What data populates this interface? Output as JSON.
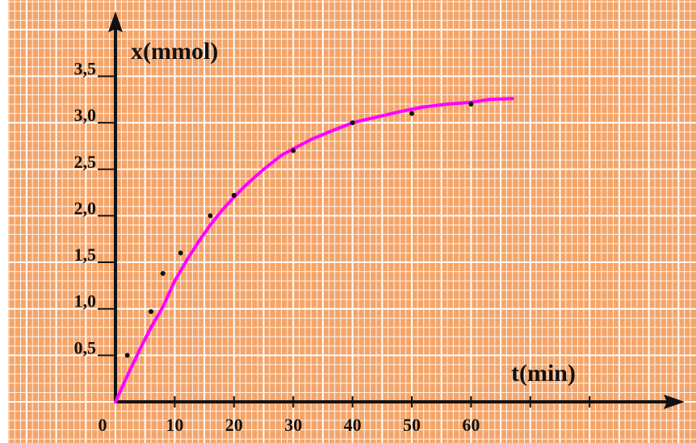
{
  "chart_data": {
    "type": "line",
    "xlabel": "t(min)",
    "ylabel": "x(mmol)",
    "xlim": [
      0,
      95
    ],
    "ylim": [
      0,
      4.2
    ],
    "grid": true,
    "x_ticks": [
      {
        "value": 0,
        "label": "0"
      },
      {
        "value": 10,
        "label": "10"
      },
      {
        "value": 20,
        "label": "20"
      },
      {
        "value": 30,
        "label": "30"
      },
      {
        "value": 40,
        "label": "40"
      },
      {
        "value": 50,
        "label": "50"
      },
      {
        "value": 60,
        "label": "60"
      }
    ],
    "y_ticks": [
      {
        "value": 0.5,
        "label": "0,5"
      },
      {
        "value": 1.0,
        "label": "1,0"
      },
      {
        "value": 1.5,
        "label": "1,5"
      },
      {
        "value": 2.0,
        "label": "2,0"
      },
      {
        "value": 2.5,
        "label": "2,5"
      },
      {
        "value": 3.0,
        "label": "3,0"
      },
      {
        "value": 3.5,
        "label": "3,5"
      }
    ],
    "series": [
      {
        "color": "#ff00ff",
        "x": [
          0,
          2,
          4,
          6,
          8,
          10,
          12,
          14,
          16,
          18,
          20,
          22,
          25,
          28,
          30,
          33,
          36,
          40,
          44,
          48,
          52,
          56,
          60,
          63,
          67
        ],
        "y": [
          0,
          0.28,
          0.55,
          0.8,
          1.02,
          1.3,
          1.52,
          1.72,
          1.9,
          2.06,
          2.2,
          2.33,
          2.5,
          2.65,
          2.72,
          2.82,
          2.9,
          3.0,
          3.06,
          3.12,
          3.17,
          3.2,
          3.22,
          3.25,
          3.26
        ]
      }
    ],
    "points": {
      "x": [
        2,
        6,
        8,
        11,
        16,
        20,
        30,
        40,
        50,
        60
      ],
      "y": [
        0.5,
        0.97,
        1.38,
        1.6,
        2.0,
        2.22,
        2.7,
        3.0,
        3.1,
        3.2
      ]
    },
    "colors": {
      "paper": "#f4a56a",
      "grid_fine": "#fff5ec",
      "grid_major": "#ffffff",
      "axis": "#111111",
      "curve": "#ff00ff",
      "marker": "#111111"
    }
  }
}
